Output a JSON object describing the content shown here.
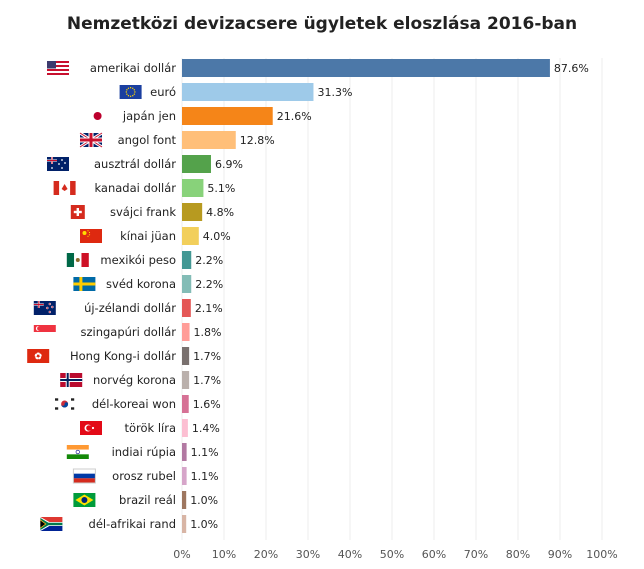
{
  "chart_data": {
    "type": "bar",
    "orientation": "horizontal",
    "title": "Nemzetközi devizacsere ügyletek eloszlása 2016-ban",
    "categories": [
      "amerikai dollár",
      "euró",
      "japán jen",
      "angol font",
      "ausztrál dollár",
      "kanadai dollár",
      "svájci frank",
      "kínai jüan",
      "mexikói peso",
      "svéd korona",
      "új-zélandi dollár",
      "szingapúri dollár",
      "Hong Kong-i dollár",
      "norvég korona",
      "dél-koreai won",
      "török líra",
      "indiai rúpia",
      "orosz rubel",
      "brazil reál",
      "dél-afrikai rand"
    ],
    "values": [
      87.6,
      31.3,
      21.6,
      12.8,
      6.9,
      5.1,
      4.8,
      4.0,
      2.2,
      2.2,
      2.1,
      1.8,
      1.7,
      1.7,
      1.6,
      1.4,
      1.1,
      1.1,
      1.0,
      1.0
    ],
    "value_labels": [
      "87.6%",
      "31.3%",
      "21.6%",
      "12.8%",
      "6.9%",
      "5.1%",
      "4.8%",
      "4.0%",
      "2.2%",
      "2.2%",
      "2.1%",
      "1.8%",
      "1.7%",
      "1.7%",
      "1.6%",
      "1.4%",
      "1.1%",
      "1.1%",
      "1.0%",
      "1.0%"
    ],
    "colors": [
      "#4c78a8",
      "#9ecae9",
      "#f58518",
      "#ffbf79",
      "#54a24b",
      "#88d27a",
      "#b79a20",
      "#f2cf5b",
      "#439894",
      "#83bcb6",
      "#e45756",
      "#ff9d98",
      "#79706e",
      "#bab0ac",
      "#d67195",
      "#fcbfd2",
      "#b279a2",
      "#d6a5c9",
      "#9e765f",
      "#d8b5a5"
    ],
    "flags": [
      "us-flag-icon",
      "eu-flag-icon",
      "japan-flag-icon",
      "uk-flag-icon",
      "australia-flag-icon",
      "canada-flag-icon",
      "switzerland-flag-icon",
      "china-flag-icon",
      "mexico-flag-icon",
      "sweden-flag-icon",
      "new-zealand-flag-icon",
      "singapore-flag-icon",
      "hong-kong-flag-icon",
      "norway-flag-icon",
      "south-korea-flag-icon",
      "turkey-flag-icon",
      "india-flag-icon",
      "russia-flag-icon",
      "brazil-flag-icon",
      "south-africa-flag-icon"
    ],
    "x_ticks": [
      "0%",
      "10%",
      "20%",
      "30%",
      "40%",
      "50%",
      "60%",
      "70%",
      "80%",
      "90%",
      "100%"
    ],
    "xlim": [
      0,
      100
    ],
    "grid": true,
    "xlabel": "",
    "ylabel": ""
  }
}
